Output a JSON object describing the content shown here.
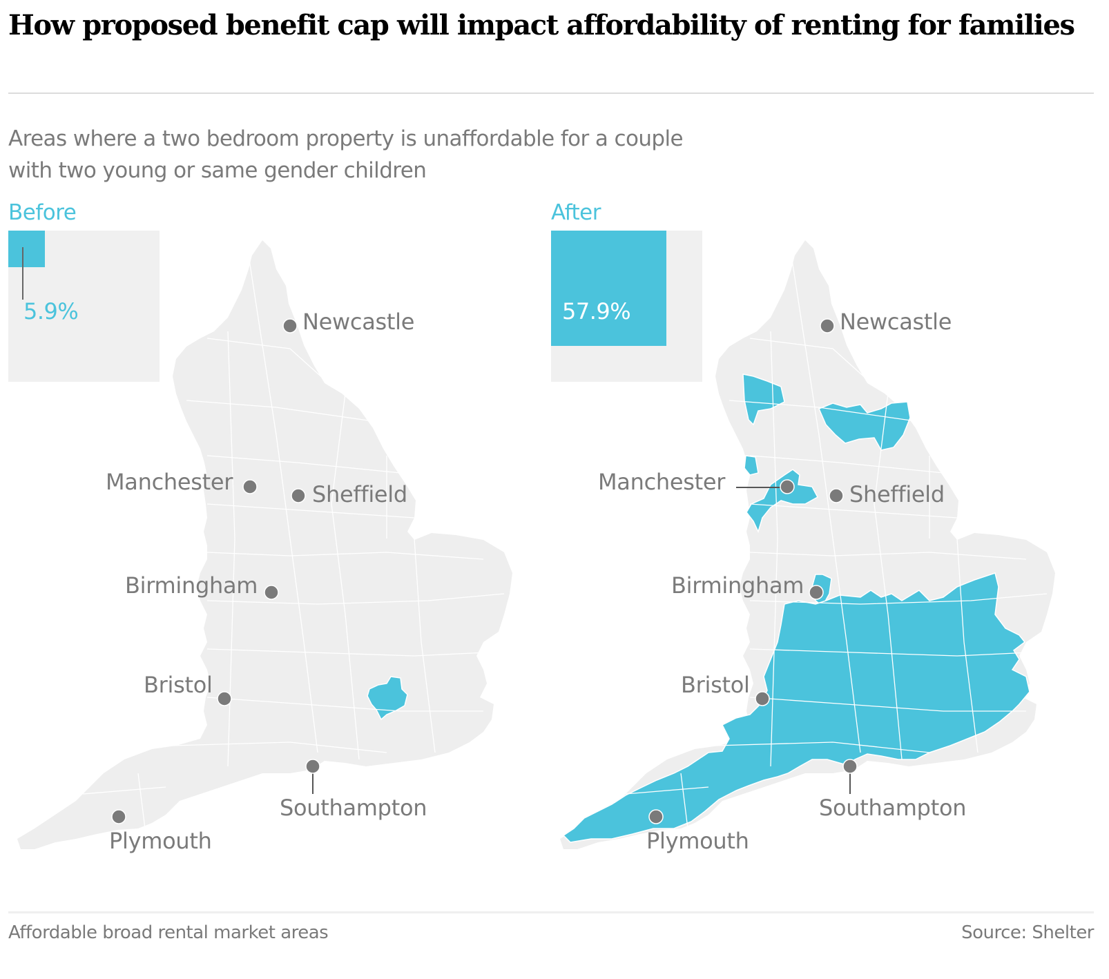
{
  "header": {
    "title": "How proposed benefit cap will impact affordability of renting for families",
    "subtitle": "Areas where a two bedroom property is unaffordable for a couple with two young or same gender children"
  },
  "colors": {
    "unaffordable": "#4bc3dc",
    "affordable": "#eeeeee",
    "city_marker": "#7a7a7a",
    "text_muted": "#7a7a7a"
  },
  "panels": [
    {
      "label": "Before",
      "share_unaffordable_pct": 5.9,
      "share_label": "5.9%",
      "highlighted_areas": [
        "London and surrounding areas"
      ]
    },
    {
      "label": "After",
      "share_unaffordable_pct": 57.9,
      "share_label": "57.9%",
      "highlighted_areas": [
        "Cumbria (south)",
        "North Yorkshire / York area",
        "Lancashire (north)",
        "Greater Manchester / Cheshire",
        "Warwickshire",
        "Southern England",
        "South West",
        "East of England (south)",
        "London"
      ]
    }
  ],
  "cities": [
    {
      "name": "Newcastle"
    },
    {
      "name": "Manchester"
    },
    {
      "name": "Sheffield"
    },
    {
      "name": "Birmingham"
    },
    {
      "name": "Bristol"
    },
    {
      "name": "Southampton"
    },
    {
      "name": "Plymouth"
    }
  ],
  "footer": {
    "legend_note": "Affordable broad rental market areas",
    "source": "Source: Shelter"
  }
}
